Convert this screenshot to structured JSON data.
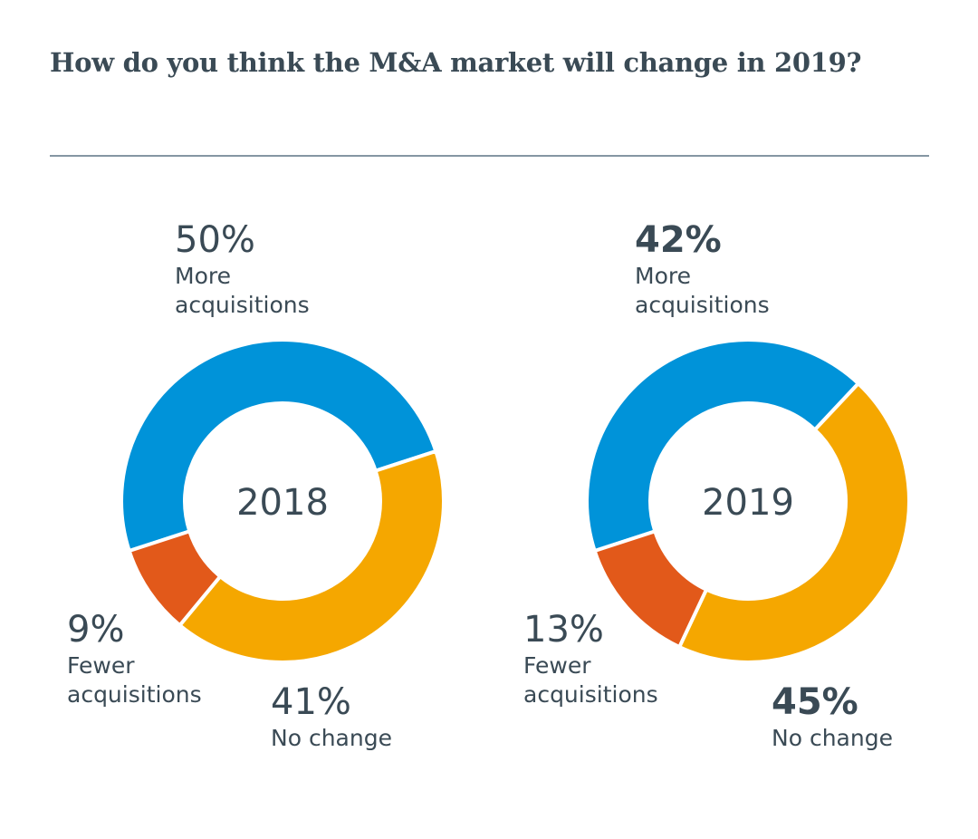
{
  "title": "How do you think the M&A market will change in 2019?",
  "colors": {
    "more": "#0093d9",
    "none": "#f5a700",
    "fewer": "#e2591a",
    "text": "#3a4a55"
  },
  "chart_data": [
    {
      "type": "pie",
      "center_label": "2018",
      "slices": [
        {
          "key": "more",
          "label_line1": "More",
          "label_line2": "acquisitions",
          "value": 50,
          "display": "50%",
          "emphasis": false
        },
        {
          "key": "none",
          "label_line1": "No change",
          "label_line2": "",
          "value": 41,
          "display": "41%",
          "emphasis": false
        },
        {
          "key": "fewer",
          "label_line1": "Fewer",
          "label_line2": "acquisitions",
          "value": 9,
          "display": "9%",
          "emphasis": false
        }
      ]
    },
    {
      "type": "pie",
      "center_label": "2019",
      "slices": [
        {
          "key": "more",
          "label_line1": "More",
          "label_line2": "acquisitions",
          "value": 42,
          "display": "42%",
          "emphasis": true
        },
        {
          "key": "none",
          "label_line1": "No change",
          "label_line2": "",
          "value": 45,
          "display": "45%",
          "emphasis": true
        },
        {
          "key": "fewer",
          "label_line1": "Fewer",
          "label_line2": "acquisitions",
          "value": 13,
          "display": "13%",
          "emphasis": false
        }
      ]
    }
  ]
}
